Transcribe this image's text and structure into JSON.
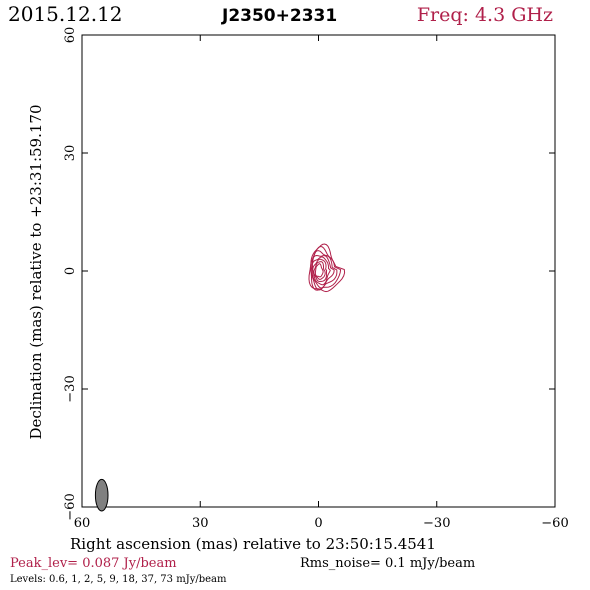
{
  "header": {
    "date": "2015.12.12",
    "source": "J2350+2331",
    "frequency": "Freq: 4.3 GHz"
  },
  "colors": {
    "accent": "#b0204a",
    "frame": "#000000",
    "beam_fill": "#808080"
  },
  "chart_data": {
    "type": "contour",
    "xlabel": "Right ascension (mas) relative to 23:50:15.4541",
    "ylabel": "Declination (mas) relative to +23:31:59.170",
    "xlim": [
      60,
      -60
    ],
    "ylim": [
      -60,
      60
    ],
    "x_ticks": [
      60,
      30,
      0,
      -30,
      -60
    ],
    "y_ticks": [
      -60,
      -30,
      0,
      30,
      60
    ],
    "x_tick_labels": [
      "60",
      "30",
      "0",
      "−30",
      "−60"
    ],
    "y_tick_labels": [
      "−60",
      "−30",
      "0",
      "30",
      "60"
    ],
    "contour_levels_mJy": [
      0.6,
      1,
      2,
      5,
      9,
      18,
      37,
      73
    ],
    "source_center": [
      0,
      0
    ],
    "beam": {
      "x": 55,
      "y": -57,
      "major_mas": 4.0,
      "minor_mas": 1.6
    }
  },
  "footer": {
    "peak": "Peak_lev=  0.087 Jy/beam",
    "rms": "Rms_noise=  0.1 mJy/beam",
    "levels": "Levels: 0.6,    1,    2,    5,    9,   18,   37,   73 mJy/beam"
  }
}
